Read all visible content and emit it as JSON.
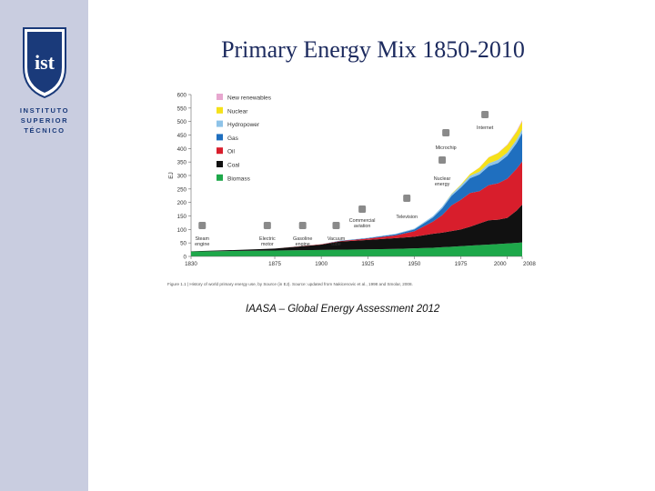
{
  "slide": {
    "title": "Primary Energy Mix 1850-2010",
    "caption": "IAASA – Global Energy Assessment 2012"
  },
  "institution": {
    "logo_mark": "ist",
    "name_lines": [
      "INSTITUTO",
      "SUPERIOR",
      "TÉCNICO"
    ]
  },
  "colors": {
    "sidebar": "#c9cde0",
    "brand": "#1a3a7a",
    "title": "#1c2a5e"
  },
  "chart_data": {
    "type": "area",
    "ylabel": "EJ",
    "ylim": [
      0,
      600
    ],
    "yticks": [
      0,
      50,
      100,
      150,
      200,
      250,
      300,
      350,
      400,
      450,
      500,
      550,
      600
    ],
    "xlim": [
      1830,
      2008
    ],
    "xticks": [
      "1830",
      "1875",
      "1900",
      "1925",
      "1950",
      "1975",
      "2000",
      "2008"
    ],
    "x": [
      1830,
      1850,
      1875,
      1900,
      1910,
      1925,
      1940,
      1950,
      1960,
      1965,
      1970,
      1975,
      1980,
      1985,
      1990,
      1995,
      2000,
      2005,
      2008
    ],
    "series": [
      {
        "name": "Biomass",
        "color": "#1ea84a",
        "values": [
          18,
          20,
          22,
          24,
          25,
          26,
          28,
          30,
          32,
          34,
          36,
          38,
          40,
          42,
          44,
          46,
          48,
          50,
          52
        ]
      },
      {
        "name": "Coal",
        "color": "#111111",
        "values": [
          1,
          3,
          7,
          20,
          30,
          35,
          40,
          43,
          52,
          54,
          58,
          62,
          70,
          80,
          90,
          90,
          95,
          120,
          140
        ]
      },
      {
        "name": "Oil",
        "color": "#d81e2c",
        "values": [
          0,
          0,
          0,
          1,
          2,
          5,
          10,
          20,
          45,
          65,
          95,
          110,
          125,
          120,
          130,
          135,
          145,
          155,
          160
        ]
      },
      {
        "name": "Gas",
        "color": "#1f6fbf",
        "values": [
          0,
          0,
          0,
          0,
          1,
          2,
          4,
          7,
          15,
          25,
          35,
          45,
          55,
          62,
          70,
          75,
          85,
          95,
          105
        ]
      },
      {
        "name": "Hydropower",
        "color": "#8ec3e8",
        "values": [
          0,
          0,
          0,
          0,
          0,
          1,
          2,
          3,
          5,
          6,
          7,
          8,
          9,
          10,
          11,
          12,
          12,
          13,
          14
        ]
      },
      {
        "name": "Nuclear",
        "color": "#f5e11a",
        "values": [
          0,
          0,
          0,
          0,
          0,
          0,
          0,
          0,
          0,
          0,
          1,
          3,
          7,
          15,
          22,
          25,
          28,
          29,
          30
        ]
      },
      {
        "name": "New renewables",
        "color": "#e7a7cf",
        "values": [
          0,
          0,
          0,
          0,
          0,
          0,
          0,
          0,
          0,
          0,
          0,
          0,
          0,
          1,
          1,
          1,
          2,
          3,
          4
        ]
      }
    ],
    "annotations": [
      {
        "label": [
          "Steam",
          "engine"
        ],
        "year": 1836,
        "icon": "steam-engine-icon"
      },
      {
        "label": [
          "Electric",
          "motor"
        ],
        "year": 1871,
        "icon": "electric-motor-icon"
      },
      {
        "label": [
          "Gasoline",
          "engine"
        ],
        "year": 1890,
        "icon": "car-icon"
      },
      {
        "label": [
          "Vacuum",
          "tube"
        ],
        "year": 1908,
        "icon": "vacuum-tube-icon"
      },
      {
        "label": [
          "Commercial",
          "aviation"
        ],
        "year": 1922,
        "icon": "airplane-icon"
      },
      {
        "label": [
          "Television"
        ],
        "year": 1946,
        "icon": "television-icon"
      },
      {
        "label": [
          "Nuclear",
          "energy"
        ],
        "year": 1965,
        "icon": "nuclear-plant-icon"
      },
      {
        "label": [
          "Microchip"
        ],
        "year": 1967,
        "icon": "microchip-icon"
      },
      {
        "label": [
          "Internet"
        ],
        "year": 1988,
        "icon": "www-icon"
      }
    ],
    "figure_caption": "Figure 1.1 | History of world primary energy use, by Source (in EJ). Source: updated from Nakicenovic et al., 1998 and Smolar, 2008."
  }
}
